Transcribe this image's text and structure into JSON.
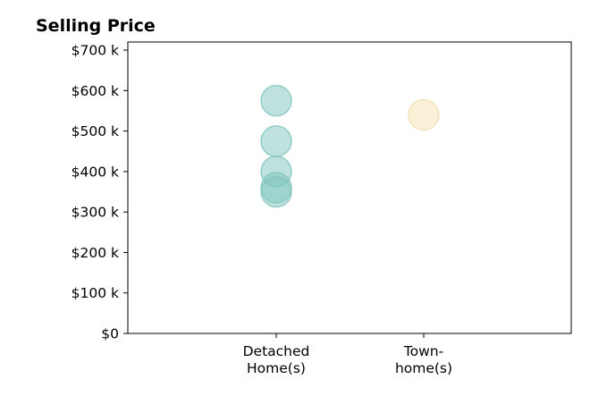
{
  "chart_data": {
    "type": "scatter",
    "title": "Selling Price",
    "xlabel": "",
    "ylabel": "",
    "categories": [
      "Detached\nHome(s)",
      "Town-\nhome(s)"
    ],
    "y_tick_labels": [
      "$0",
      "$100 k",
      "$200 k",
      "$300 k",
      "$400 k",
      "$500 k",
      "$600 k",
      "$700 k"
    ],
    "y_ticks": [
      0,
      100000,
      200000,
      300000,
      400000,
      500000,
      600000,
      700000
    ],
    "ylim": [
      0,
      720000
    ],
    "grid": false,
    "series": [
      {
        "category": "Detached\nHome(s)",
        "color": "#7fc6bd",
        "values": [
          575000,
          475000,
          400000,
          360000,
          350000
        ]
      },
      {
        "category": "Town-\nhome(s)",
        "color": "#f5dfb0",
        "values": [
          540000
        ]
      }
    ]
  }
}
